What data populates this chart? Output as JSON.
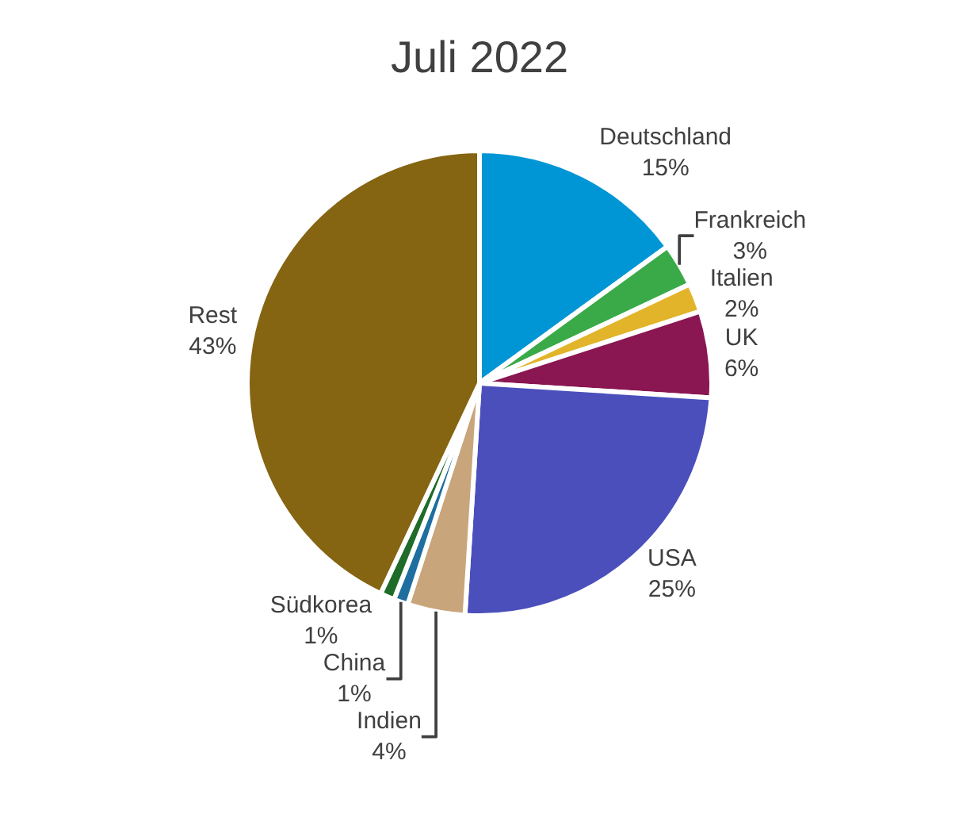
{
  "chart_data": {
    "type": "pie",
    "title": "Juli 2022",
    "categories": [
      "Deutschland",
      "Frankreich",
      "Italien",
      "UK",
      "USA",
      "Indien",
      "China",
      "Südkorea",
      "Rest"
    ],
    "values": [
      15,
      3,
      2,
      6,
      25,
      4,
      1,
      1,
      43
    ],
    "value_labels": [
      "15%",
      "3%",
      "2%",
      "6%",
      "25%",
      "4%",
      "1%",
      "1%",
      "43%"
    ],
    "colors": [
      "#0096d6",
      "#3aaa48",
      "#e2b42a",
      "#8a1652",
      "#4b4fbb",
      "#c8a57a",
      "#1e6fa0",
      "#1e6b2a",
      "#856412"
    ]
  }
}
